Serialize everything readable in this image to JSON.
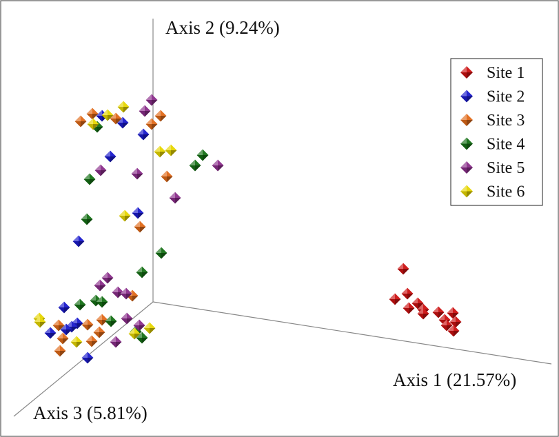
{
  "chart_data": {
    "type": "scatter",
    "projection": "3d",
    "axes": {
      "x_label": "Axis 1 (21.57%)",
      "y_label": "Axis 2 (9.24%)",
      "z_label": "Axis 3 (5.81%)"
    },
    "legend_position": "top-right",
    "series": [
      {
        "name": "Site 1",
        "color": "#cc1111",
        "points": [
          [
            585,
            390
          ],
          [
            591,
            426
          ],
          [
            573,
            434
          ],
          [
            606,
            440
          ],
          [
            593,
            447
          ],
          [
            614,
            449
          ],
          [
            636,
            453
          ],
          [
            657,
            454
          ],
          [
            614,
            455
          ],
          [
            645,
            464
          ],
          [
            661,
            467
          ],
          [
            648,
            472
          ],
          [
            658,
            480
          ]
        ]
      },
      {
        "name": "Site 2",
        "color": "#1a1acc",
        "points": [
          [
            148,
            168
          ],
          [
            178,
            178
          ],
          [
            208,
            195
          ],
          [
            160,
            227
          ],
          [
            200,
            309
          ],
          [
            114,
            350
          ],
          [
            93,
            446
          ],
          [
            112,
            469
          ],
          [
            104,
            474
          ],
          [
            96,
            478
          ],
          [
            73,
            483
          ],
          [
            127,
            519
          ]
        ]
      },
      {
        "name": "Site 3",
        "color": "#e06a18",
        "points": [
          [
            117,
            176
          ],
          [
            134,
            165
          ],
          [
            168,
            172
          ],
          [
            220,
            180
          ],
          [
            233,
            168
          ],
          [
            242,
            256
          ],
          [
            203,
            329
          ],
          [
            192,
            429
          ],
          [
            85,
            472
          ],
          [
            127,
            471
          ],
          [
            148,
            464
          ],
          [
            144,
            482
          ],
          [
            91,
            491
          ],
          [
            87,
            509
          ],
          [
            133,
            495
          ]
        ]
      },
      {
        "name": "Site 4",
        "color": "#157015",
        "points": [
          [
            141,
            184
          ],
          [
            294,
            225
          ],
          [
            283,
            240
          ],
          [
            130,
            260
          ],
          [
            126,
            318
          ],
          [
            234,
            367
          ],
          [
            206,
            395
          ],
          [
            116,
            442
          ],
          [
            139,
            436
          ],
          [
            148,
            438
          ],
          [
            161,
            466
          ],
          [
            197,
            481
          ],
          [
            206,
            490
          ]
        ]
      },
      {
        "name": "Site 5",
        "color": "#8a2d8a",
        "points": [
          [
            220,
            145
          ],
          [
            210,
            161
          ],
          [
            316,
            240
          ],
          [
            146,
            247
          ],
          [
            199,
            252
          ],
          [
            254,
            287
          ],
          [
            156,
            403
          ],
          [
            145,
            414
          ],
          [
            171,
            424
          ],
          [
            183,
            426
          ],
          [
            184,
            462
          ],
          [
            202,
            472
          ],
          [
            168,
            496
          ]
        ]
      },
      {
        "name": "Site 6",
        "color": "#e6d600",
        "points": [
          [
            179,
            155
          ],
          [
            156,
            167
          ],
          [
            135,
            180
          ],
          [
            232,
            220
          ],
          [
            248,
            218
          ],
          [
            181,
            313
          ],
          [
            57,
            462
          ],
          [
            58,
            467
          ],
          [
            111,
            496
          ],
          [
            195,
            484
          ],
          [
            217,
            476
          ]
        ]
      }
    ]
  }
}
